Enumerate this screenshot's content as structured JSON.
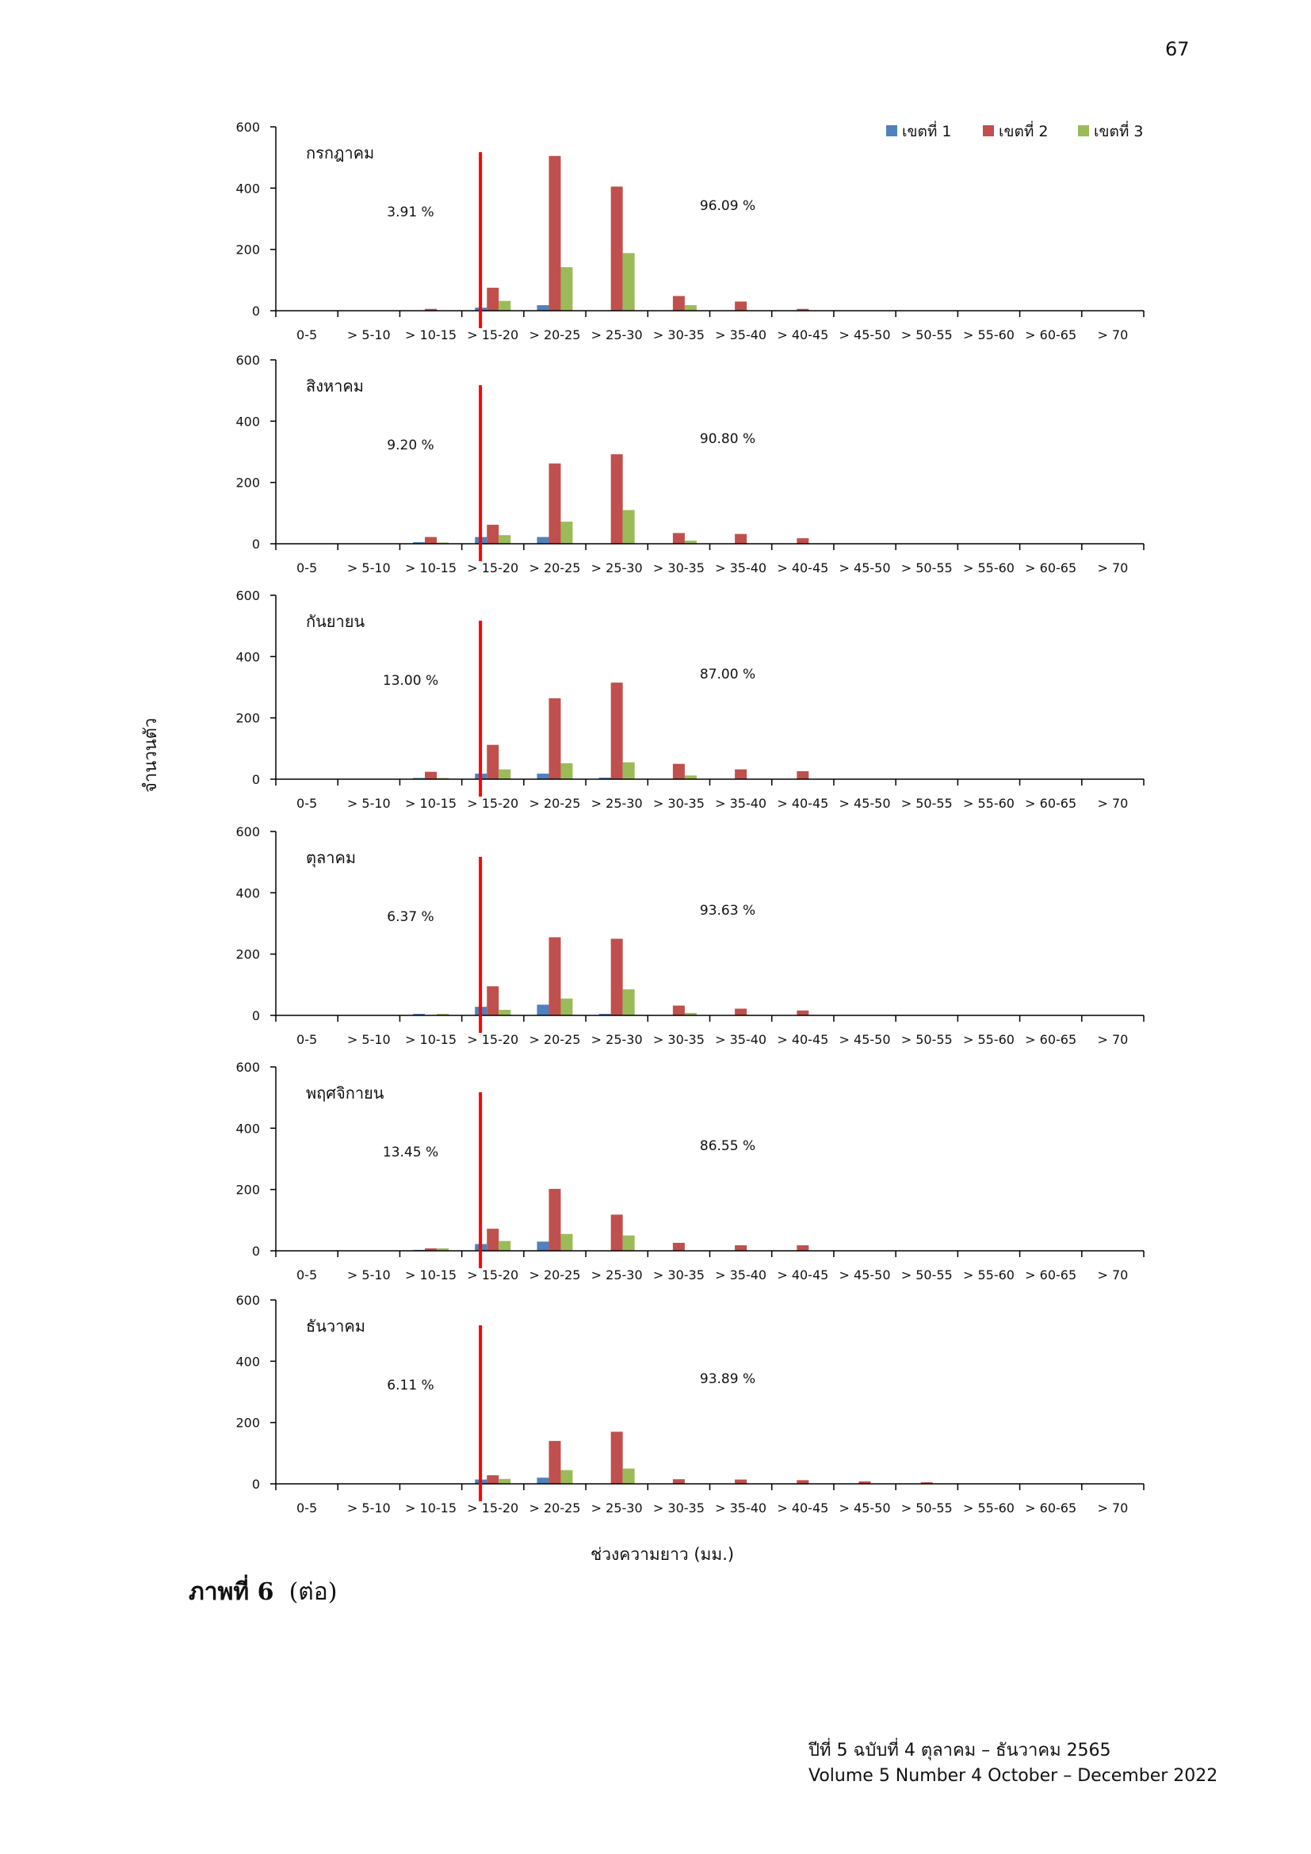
{
  "page_number": "67",
  "y_axis_label": "จำนวนตัว",
  "x_axis_label": "ช่วงความยาว (มม.)",
  "caption": {
    "bold": "ภาพที่ 6",
    "rest": "(ต่อ)"
  },
  "footer": {
    "line1": "ปีที่ 5 ฉบับที่ 4 ตุลาคม – ธันวาคม 2565",
    "line2": "Volume 5 Number 4 October – December 2022"
  },
  "chart_data": {
    "type": "bar",
    "categories": [
      "0-5",
      "> 5-10",
      "> 10-15",
      "> 15-20",
      "> 20-25",
      "> 25-30",
      "> 30-35",
      "> 35-40",
      "> 40-45",
      "> 45-50",
      "> 50-55",
      "> 55-60",
      "> 60-65",
      "> 70"
    ],
    "ylim": [
      0,
      600
    ],
    "yticks": [
      0,
      200,
      400,
      600
    ],
    "series_names": [
      "เขตที่ 1",
      "เขตที่ 2",
      "เขตที่ 3"
    ],
    "colors": {
      "series1": "#4F81BD",
      "series2": "#C0504D",
      "series3": "#9BBB59",
      "marker": "#FF0000"
    },
    "legend_position": "top-right",
    "panels": [
      {
        "title": "กรกฎาคม",
        "left_percent": "3.91 %",
        "right_percent": "96.09 %",
        "series": [
          {
            "name": "เขตที่ 1",
            "values": [
              0,
              0,
              0,
              10,
              18,
              0,
              0,
              0,
              0,
              0,
              0,
              0,
              0,
              0
            ]
          },
          {
            "name": "เขตที่ 2",
            "values": [
              0,
              0,
              6,
              75,
              505,
              405,
              48,
              30,
              6,
              0,
              0,
              0,
              0,
              0
            ]
          },
          {
            "name": "เขตที่ 3",
            "values": [
              0,
              0,
              0,
              32,
              142,
              188,
              18,
              0,
              0,
              0,
              0,
              0,
              0,
              0
            ]
          }
        ]
      },
      {
        "title": "สิงหาคม",
        "left_percent": "9.20 %",
        "right_percent": "90.80 %",
        "series": [
          {
            "name": "เขตที่ 1",
            "values": [
              0,
              0,
              5,
              22,
              22,
              0,
              0,
              0,
              0,
              0,
              0,
              0,
              0,
              0
            ]
          },
          {
            "name": "เขตที่ 2",
            "values": [
              0,
              0,
              22,
              62,
              262,
              292,
              35,
              32,
              18,
              0,
              0,
              0,
              0,
              0
            ]
          },
          {
            "name": "เขตที่ 3",
            "values": [
              0,
              0,
              4,
              28,
              72,
              110,
              10,
              0,
              0,
              0,
              0,
              0,
              0,
              0
            ]
          }
        ]
      },
      {
        "title": "กันยายน",
        "left_percent": "13.00 %",
        "right_percent": "87.00 %",
        "series": [
          {
            "name": "เขตที่ 1",
            "values": [
              0,
              0,
              4,
              18,
              18,
              5,
              0,
              0,
              0,
              0,
              0,
              0,
              0,
              0
            ]
          },
          {
            "name": "เขตที่ 2",
            "values": [
              0,
              0,
              24,
              112,
              264,
              315,
              50,
              32,
              26,
              0,
              0,
              0,
              0,
              0
            ]
          },
          {
            "name": "เขตที่ 3",
            "values": [
              0,
              0,
              4,
              32,
              52,
              55,
              12,
              0,
              0,
              0,
              0,
              0,
              0,
              0
            ]
          }
        ]
      },
      {
        "title": "ตุลาคม",
        "left_percent": "6.37 %",
        "right_percent": "93.63 %",
        "series": [
          {
            "name": "เขตที่ 1",
            "values": [
              0,
              0,
              5,
              28,
              35,
              5,
              0,
              0,
              0,
              0,
              0,
              0,
              0,
              0
            ]
          },
          {
            "name": "เขตที่ 2",
            "values": [
              0,
              0,
              0,
              95,
              255,
              250,
              32,
              22,
              16,
              0,
              0,
              0,
              0,
              0
            ]
          },
          {
            "name": "เขตที่ 3",
            "values": [
              0,
              0,
              5,
              18,
              55,
              85,
              8,
              0,
              0,
              0,
              0,
              0,
              0,
              0
            ]
          }
        ]
      },
      {
        "title": "พฤศจิกายน",
        "left_percent": "13.45 %",
        "right_percent": "86.55 %",
        "series": [
          {
            "name": "เขตที่ 1",
            "values": [
              0,
              0,
              3,
              22,
              30,
              0,
              0,
              0,
              0,
              0,
              0,
              0,
              0,
              0
            ]
          },
          {
            "name": "เขตที่ 2",
            "values": [
              0,
              0,
              8,
              72,
              202,
              118,
              26,
              18,
              18,
              0,
              0,
              0,
              0,
              0
            ]
          },
          {
            "name": "เขตที่ 3",
            "values": [
              0,
              0,
              8,
              32,
              55,
              50,
              0,
              0,
              0,
              0,
              0,
              0,
              0,
              0
            ]
          }
        ]
      },
      {
        "title": "ธันวาคม",
        "left_percent": "6.11 %",
        "right_percent": "93.89 %",
        "series": [
          {
            "name": "เขตที่ 1",
            "values": [
              0,
              0,
              0,
              14,
              20,
              0,
              0,
              0,
              0,
              0,
              0,
              0,
              0,
              0
            ]
          },
          {
            "name": "เขตที่ 2",
            "values": [
              0,
              0,
              0,
              28,
              140,
              170,
              15,
              14,
              12,
              8,
              5,
              0,
              0,
              0
            ]
          },
          {
            "name": "เขตที่ 3",
            "values": [
              0,
              0,
              0,
              16,
              45,
              50,
              0,
              0,
              0,
              0,
              0,
              0,
              0,
              0
            ]
          }
        ]
      }
    ]
  }
}
